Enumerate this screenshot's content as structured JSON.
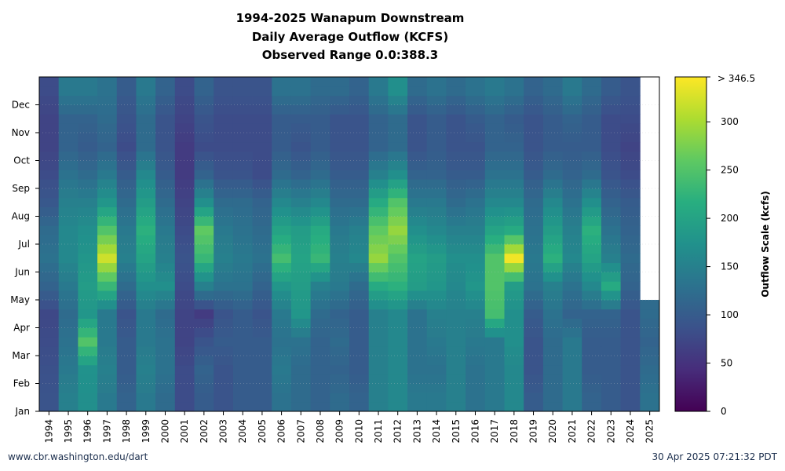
{
  "chart_data": {
    "type": "heatmap",
    "title": [
      "1994-2025 Wanapum Downstream",
      "Daily Average Outflow (KCFS)",
      "Observed Range 0.0:388.3"
    ],
    "x": [
      "1994",
      "1995",
      "1996",
      "1997",
      "1998",
      "1999",
      "2000",
      "2001",
      "2002",
      "2003",
      "2004",
      "2005",
      "2006",
      "2007",
      "2008",
      "2009",
      "2010",
      "2011",
      "2012",
      "2013",
      "2014",
      "2015",
      "2016",
      "2017",
      "2018",
      "2019",
      "2020",
      "2021",
      "2022",
      "2023",
      "2024",
      "2025"
    ],
    "y_ticks": [
      "Jan",
      "Feb",
      "Mar",
      "Apr",
      "May",
      "Jun",
      "Jul",
      "Aug",
      "Sep",
      "Oct",
      "Nov",
      "Dec"
    ],
    "months_avg": {
      "1994": [
        90,
        85,
        80,
        75,
        110,
        130,
        120,
        95,
        80,
        70,
        70,
        80
      ],
      "1995": [
        150,
        140,
        130,
        120,
        140,
        160,
        160,
        150,
        130,
        110,
        110,
        140
      ],
      "1996": [
        170,
        175,
        250,
        180,
        190,
        180,
        170,
        150,
        120,
        100,
        110,
        140
      ],
      "1997": [
        140,
        150,
        140,
        140,
        230,
        320,
        250,
        180,
        140,
        110,
        120,
        130
      ],
      "1998": [
        110,
        100,
        100,
        90,
        120,
        150,
        140,
        120,
        100,
        80,
        90,
        100
      ],
      "1999": [
        140,
        150,
        140,
        140,
        170,
        200,
        220,
        190,
        160,
        120,
        120,
        140
      ],
      "2000": [
        120,
        130,
        130,
        120,
        170,
        150,
        140,
        120,
        100,
        90,
        90,
        110
      ],
      "2001": [
        80,
        80,
        70,
        70,
        80,
        90,
        80,
        70,
        60,
        60,
        70,
        80
      ],
      "2002": [
        100,
        110,
        90,
        60,
        150,
        230,
        260,
        170,
        110,
        80,
        90,
        110
      ],
      "2003": [
        90,
        90,
        100,
        90,
        130,
        150,
        140,
        120,
        90,
        80,
        80,
        90
      ],
      "2004": [
        100,
        100,
        100,
        100,
        130,
        140,
        130,
        120,
        90,
        80,
        80,
        90
      ],
      "2005": [
        100,
        100,
        100,
        90,
        110,
        130,
        120,
        110,
        80,
        80,
        80,
        90
      ],
      "2006": [
        130,
        140,
        130,
        140,
        180,
        240,
        200,
        160,
        120,
        100,
        100,
        130
      ],
      "2007": [
        120,
        120,
        130,
        180,
        190,
        200,
        190,
        150,
        110,
        90,
        100,
        130
      ],
      "2008": [
        110,
        110,
        110,
        120,
        150,
        230,
        210,
        160,
        120,
        100,
        100,
        120
      ],
      "2009": [
        120,
        110,
        120,
        110,
        140,
        150,
        140,
        120,
        100,
        90,
        90,
        120
      ],
      "2010": [
        110,
        100,
        100,
        100,
        120,
        160,
        150,
        120,
        100,
        90,
        90,
        110
      ],
      "2011": [
        150,
        150,
        150,
        150,
        210,
        290,
        260,
        210,
        150,
        110,
        110,
        140
      ],
      "2012": [
        160,
        160,
        160,
        160,
        220,
        250,
        290,
        250,
        170,
        120,
        120,
        170
      ],
      "2013": [
        140,
        130,
        130,
        130,
        190,
        200,
        170,
        140,
        110,
        90,
        90,
        120
      ],
      "2014": [
        140,
        130,
        140,
        150,
        180,
        190,
        160,
        140,
        110,
        100,
        100,
        130
      ],
      "2015": [
        150,
        150,
        150,
        150,
        160,
        170,
        150,
        120,
        100,
        90,
        90,
        120
      ],
      "2016": [
        130,
        130,
        140,
        150,
        180,
        170,
        150,
        130,
        100,
        90,
        100,
        130
      ],
      "2017": [
        140,
        140,
        140,
        240,
        250,
        250,
        200,
        160,
        130,
        110,
        110,
        140
      ],
      "2018": [
        160,
        160,
        170,
        170,
        190,
        340,
        210,
        160,
        130,
        110,
        100,
        130
      ],
      "2019": [
        100,
        90,
        90,
        100,
        130,
        140,
        130,
        120,
        100,
        90,
        90,
        110
      ],
      "2020": [
        120,
        120,
        120,
        130,
        150,
        220,
        190,
        160,
        120,
        100,
        100,
        120
      ],
      "2021": [
        140,
        140,
        140,
        110,
        130,
        160,
        150,
        130,
        110,
        100,
        110,
        140
      ],
      "2022": [
        110,
        100,
        100,
        110,
        160,
        200,
        220,
        170,
        120,
        100,
        100,
        120
      ],
      "2023": [
        100,
        100,
        100,
        110,
        210,
        150,
        130,
        110,
        90,
        80,
        80,
        100
      ],
      "2024": [
        90,
        90,
        90,
        90,
        110,
        120,
        110,
        100,
        80,
        70,
        80,
        90
      ],
      "2025": [
        130,
        120,
        110,
        120,
        null,
        null,
        null,
        null,
        null,
        null,
        null,
        null
      ]
    },
    "colorbar": {
      "label": "Outflow Scale (kcfs)",
      "ticks": [
        0,
        50,
        100,
        150,
        200,
        250,
        300
      ],
      "top_label": "> 346.5",
      "min": 0,
      "max": 346.5
    },
    "grid": true
  },
  "footer": {
    "left": "www.cbr.washington.edu/dart",
    "right": "30 Apr 2025 07:21:32 PDT"
  }
}
